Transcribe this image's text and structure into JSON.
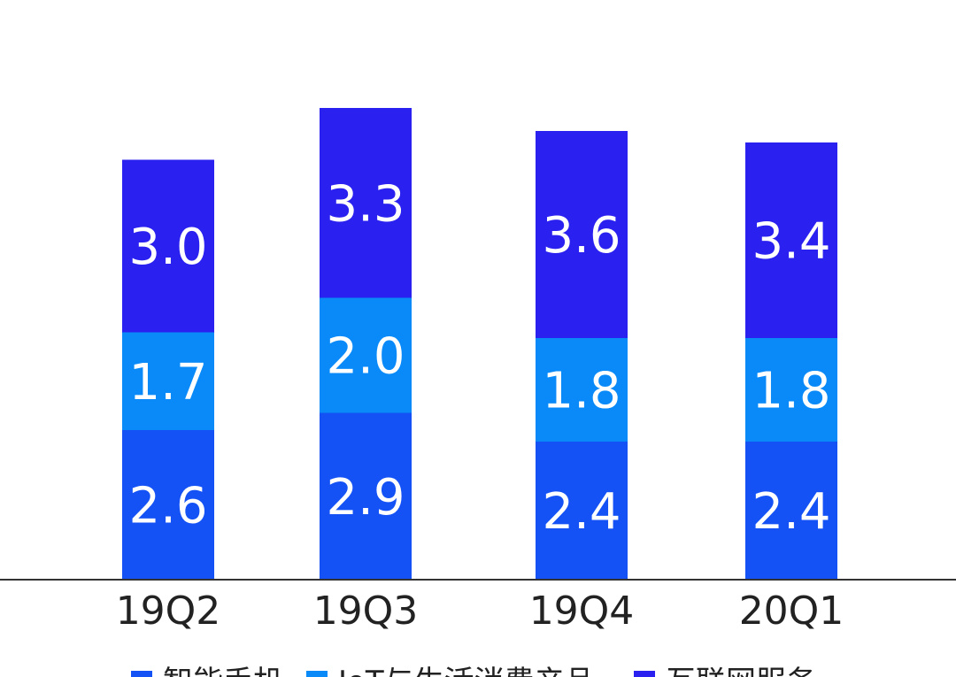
{
  "colors": {
    "smartphone": "#1452f5",
    "iot": "#0a8af8",
    "internet": "#2a20f0",
    "axis": "#333333"
  },
  "chart_data": {
    "type": "bar",
    "stacked": true,
    "title": "",
    "xlabel": "",
    "ylabel": "",
    "categories": [
      "19Q2",
      "19Q3",
      "19Q4",
      "20Q1"
    ],
    "series": [
      {
        "name": "智能手机",
        "values": [
          2.6,
          2.9,
          2.4,
          2.4
        ],
        "color": "#1452f5"
      },
      {
        "name": "IoT与生活消费产品",
        "values": [
          1.7,
          2.0,
          1.8,
          1.8
        ],
        "color": "#0a8af8"
      },
      {
        "name": "互联网服务",
        "values": [
          3.0,
          3.3,
          3.6,
          3.4
        ],
        "color": "#2a20f0"
      }
    ],
    "data_labels": [
      [
        "2.6",
        "2.9",
        "2.4",
        "2.4"
      ],
      [
        "1.7",
        "2.0",
        "1.8",
        "1.8"
      ],
      [
        "3.0",
        "3.3",
        "3.6",
        "3.4"
      ]
    ],
    "legend_position": "bottom",
    "grid": false
  }
}
